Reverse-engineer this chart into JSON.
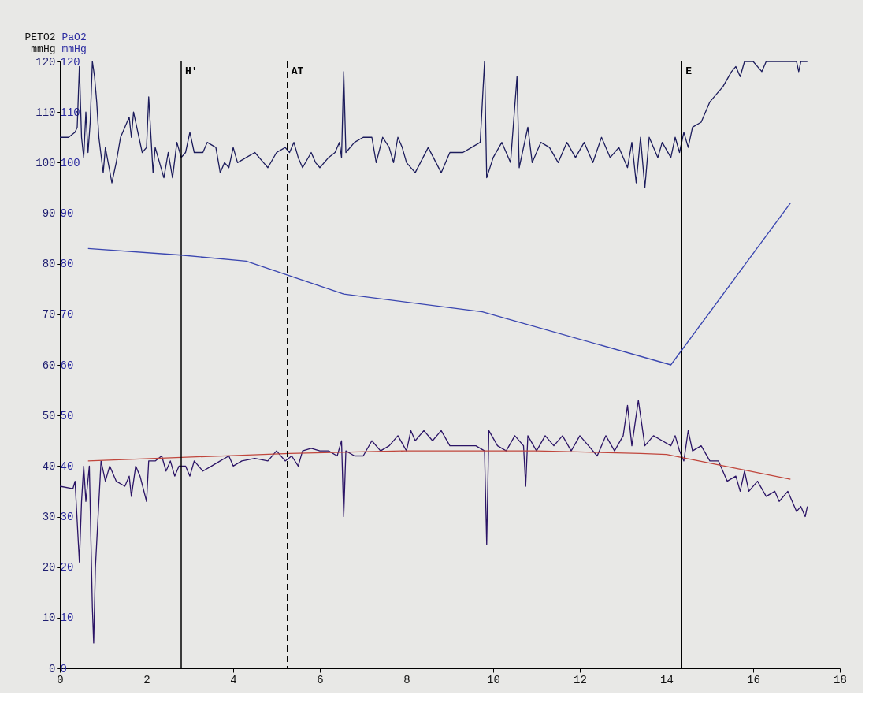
{
  "chart_data": {
    "type": "line",
    "ylabel": "PETO2 mmHg",
    "y2label": "PaO2 mmHg",
    "xlim": [
      0,
      18
    ],
    "xticks": [
      0,
      2,
      4,
      6,
      8,
      10,
      12,
      14,
      16,
      18
    ],
    "ylim": [
      0,
      120
    ],
    "yticks": [
      0,
      10,
      20,
      30,
      40,
      50,
      60,
      70,
      80,
      90,
      100,
      110,
      120
    ],
    "y2lim": [
      0,
      120
    ],
    "y2ticks": [
      0,
      10,
      20,
      30,
      40,
      50,
      60,
      70,
      80,
      90,
      100,
      110,
      120
    ],
    "grid": false,
    "marker": "none",
    "line_style": "solid",
    "series": [
      {
        "color": "#1c1c5c",
        "x": [
          0,
          0.2,
          0.35,
          0.4,
          0.45,
          0.5,
          0.55,
          0.6,
          0.65,
          0.7,
          0.75,
          0.8,
          0.85,
          0.9,
          1.0,
          1.05,
          1.2,
          1.3,
          1.4,
          1.5,
          1.6,
          1.65,
          1.7,
          1.8,
          1.9,
          2.0,
          2.05,
          2.15,
          2.2,
          2.4,
          2.5,
          2.6,
          2.7,
          2.8,
          2.9,
          3.0,
          3.1,
          3.3,
          3.4,
          3.6,
          3.7,
          3.8,
          3.9,
          4.0,
          4.1,
          4.3,
          4.5,
          4.7,
          4.8,
          5.0,
          5.2,
          5.3,
          5.4,
          5.5,
          5.6,
          5.8,
          5.9,
          6.0,
          6.2,
          6.35,
          6.45,
          6.5,
          6.55,
          6.6,
          6.8,
          7.0,
          7.2,
          7.3,
          7.45,
          7.6,
          7.7,
          7.8,
          7.9,
          8.0,
          8.2,
          8.5,
          8.8,
          9.0,
          9.3,
          9.5,
          9.7,
          9.8,
          9.85,
          10.0,
          10.2,
          10.4,
          10.55,
          10.6,
          10.8,
          10.9,
          11.1,
          11.3,
          11.5,
          11.7,
          11.9,
          12.1,
          12.3,
          12.5,
          12.7,
          12.9,
          13.1,
          13.2,
          13.3,
          13.4,
          13.5,
          13.6,
          13.8,
          13.9,
          14.1,
          14.2,
          14.3,
          14.4,
          14.5,
          14.6,
          14.8,
          15.0,
          15.1,
          15.3,
          15.5,
          15.6,
          15.7,
          15.8,
          16.0,
          16.2,
          16.3,
          17.0,
          17.05,
          17.1,
          17.25
        ],
        "values": [
          105,
          105,
          106,
          107,
          119,
          105,
          101,
          110,
          102,
          108,
          120,
          117,
          112,
          105,
          98,
          103,
          96,
          100,
          105,
          107,
          109,
          105,
          110,
          106,
          102,
          103,
          113,
          98,
          103,
          97,
          102,
          97,
          104,
          101,
          102,
          106,
          102,
          102,
          104,
          103,
          98,
          100,
          99,
          103,
          100,
          101,
          102,
          100,
          99,
          102,
          103,
          102,
          104,
          101,
          99,
          102,
          100,
          99,
          101,
          102,
          104,
          101,
          118,
          102,
          104,
          105,
          105,
          100,
          105,
          103,
          100,
          105,
          103,
          100,
          98,
          103,
          98,
          102,
          102,
          103,
          104,
          120,
          97,
          101,
          104,
          100,
          117,
          99,
          107,
          100,
          104,
          103,
          100,
          104,
          101,
          104,
          100,
          105,
          101,
          103,
          99,
          104,
          96,
          105,
          95,
          105,
          101,
          104,
          101,
          105,
          102,
          106,
          103,
          107,
          108,
          112,
          113,
          115,
          118,
          119,
          117,
          120,
          120,
          118,
          120,
          120,
          118,
          120,
          120
        ]
      },
      {
        "color": "#3a46b0",
        "axis": "y2",
        "x": [
          0.65,
          2.8,
          4.3,
          6.55,
          9.75,
          14.1,
          16.86
        ],
        "values": [
          83,
          81.7,
          80.5,
          74,
          70.5,
          60,
          92
        ]
      },
      {
        "color": "#2b1466",
        "x": [
          0,
          0.3,
          0.35,
          0.45,
          0.5,
          0.55,
          0.6,
          0.68,
          0.75,
          0.78,
          0.82,
          0.95,
          1.05,
          1.15,
          1.3,
          1.5,
          1.6,
          1.65,
          1.75,
          1.85,
          2.0,
          2.05,
          2.2,
          2.35,
          2.45,
          2.55,
          2.65,
          2.75,
          2.9,
          3.0,
          3.1,
          3.3,
          3.5,
          3.7,
          3.9,
          4.0,
          4.2,
          4.5,
          4.8,
          5.0,
          5.2,
          5.35,
          5.5,
          5.6,
          5.8,
          6.0,
          6.2,
          6.4,
          6.5,
          6.55,
          6.6,
          6.8,
          7.0,
          7.2,
          7.4,
          7.6,
          7.8,
          8.0,
          8.1,
          8.2,
          8.4,
          8.6,
          8.8,
          9.0,
          9.3,
          9.6,
          9.8,
          9.85,
          9.9,
          10.1,
          10.3,
          10.5,
          10.7,
          10.75,
          10.8,
          11.0,
          11.2,
          11.4,
          11.6,
          11.8,
          12.0,
          12.2,
          12.4,
          12.6,
          12.8,
          13.0,
          13.1,
          13.2,
          13.35,
          13.5,
          13.7,
          13.9,
          14.1,
          14.2,
          14.3,
          14.4,
          14.5,
          14.6,
          14.8,
          15.0,
          15.2,
          15.4,
          15.6,
          15.7,
          15.8,
          15.9,
          16.1,
          16.3,
          16.5,
          16.6,
          16.8,
          17.0,
          17.1,
          17.2,
          17.25
        ],
        "values": [
          36,
          35.5,
          37,
          21,
          33,
          40,
          33,
          40,
          12,
          5,
          20,
          41,
          37,
          40,
          37,
          36,
          38,
          34,
          40,
          38,
          33,
          41,
          41,
          42,
          39,
          41,
          38,
          40,
          40,
          38,
          41,
          39,
          40,
          41,
          42,
          40,
          41,
          41.5,
          41,
          43,
          41,
          42,
          40,
          43,
          43.5,
          43,
          43,
          42,
          45,
          30,
          43,
          42,
          42,
          45,
          43,
          44,
          46,
          43,
          47,
          45,
          47,
          45,
          47,
          44,
          44,
          44,
          43,
          24.5,
          47,
          44,
          43,
          46,
          44,
          36,
          46,
          43,
          46,
          44,
          46,
          43,
          46,
          44,
          42,
          46,
          43,
          46,
          52,
          44,
          53,
          44,
          46,
          45,
          44,
          46,
          43,
          41,
          47,
          43,
          44,
          41,
          41,
          37,
          38,
          35,
          39,
          35,
          37,
          34,
          35,
          33,
          35,
          31,
          32,
          30,
          32
        ]
      },
      {
        "color": "#c0463c",
        "x": [
          0.65,
          2.8,
          5.3,
          8,
          11,
          13.4,
          14.0,
          16.86
        ],
        "values": [
          41,
          41.7,
          42.5,
          43,
          43,
          42.5,
          42.3,
          37.4
        ]
      }
    ],
    "ref_lines": [
      {
        "axis": "x",
        "value": 2.8,
        "label": "H'",
        "color": "#000000",
        "line_style": "solid"
      },
      {
        "axis": "x",
        "value": 5.25,
        "label": "AT",
        "color": "#000000",
        "line_style": "dashed"
      },
      {
        "axis": "x",
        "value": 14.35,
        "label": "E",
        "color": "#000000",
        "line_style": "solid"
      }
    ]
  }
}
